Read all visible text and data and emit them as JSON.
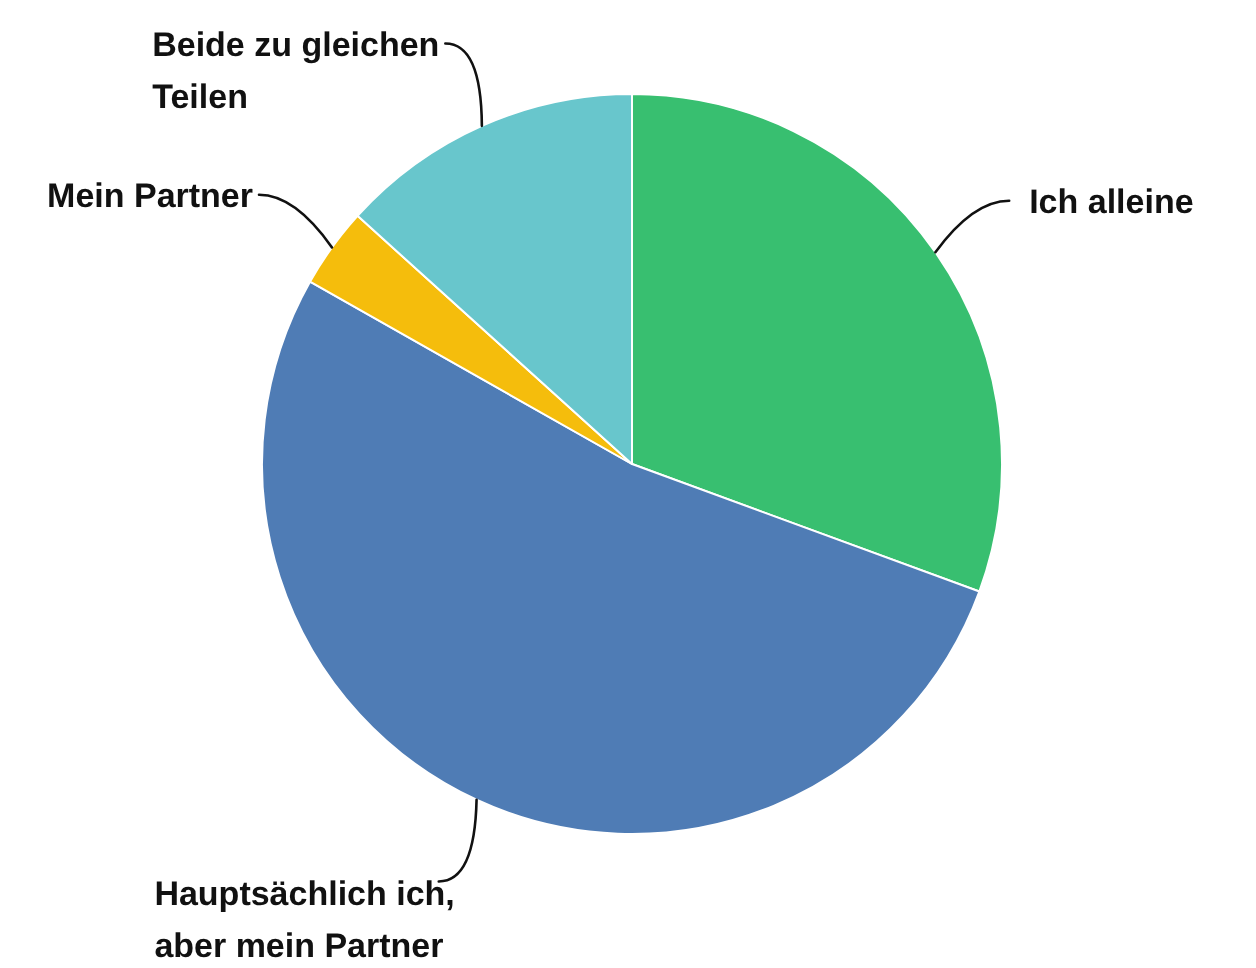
{
  "chart_data": {
    "type": "pie",
    "categories": [
      "Ich alleine",
      "Hauptsächlich ich, aber mein Partner",
      "Mein Partner",
      "Beide zu gleichen Teilen"
    ],
    "values": [
      30.6,
      52.6,
      3.5,
      13.3
    ],
    "colors": [
      "#38bf70",
      "#4f7cb5",
      "#f5bd0c",
      "#68c6cc"
    ]
  }
}
